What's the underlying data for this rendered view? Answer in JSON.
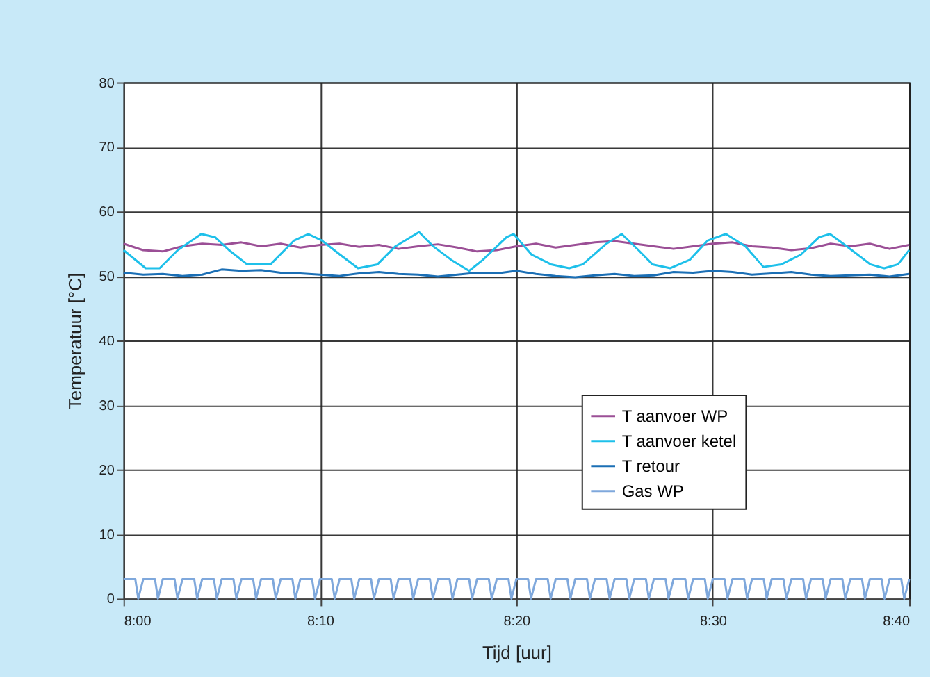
{
  "chart_data": {
    "type": "line",
    "xlabel": "Tijd [uur]",
    "ylabel": "Temperatuur [°C]",
    "x": [
      8,
      8.0167,
      8.0333,
      8.05,
      8.0667,
      8.0833,
      8.1,
      8.1167,
      8.1333,
      8.15,
      8.1667,
      8.1833,
      8.2,
      8.2167,
      8.2333,
      8.25,
      8.2667,
      8.2833,
      8.3,
      8.3167,
      8.3333,
      8.35,
      8.3667,
      8.3833,
      8.4,
      8.4167,
      8.4333,
      8.45,
      8.4667,
      8.4833,
      8.5,
      8.5167,
      8.5333,
      8.55,
      8.5667,
      8.5833,
      8.6,
      8.6167,
      8.6333,
      8.65,
      8.6667
    ],
    "series": [
      {
        "name": "T aanvoer WP",
        "color": "#9b4f96",
        "values": [
          55,
          54,
          53.8,
          54.6,
          55,
          54.8,
          55.2,
          54.6,
          55,
          54.4,
          54.8,
          55,
          54.5,
          54.8,
          54.2,
          54.6,
          54.9,
          54.4,
          53.8,
          54,
          54.6,
          55,
          54.4,
          54.8,
          55.2,
          55.4,
          55,
          54.6,
          54.2,
          54.6,
          55,
          55.2,
          54.6,
          54.4,
          54,
          54.3,
          55,
          54.6,
          55,
          54.2,
          54.8
        ]
      },
      {
        "name": "T aanvoer ketel",
        "color": "#1ec0ea",
        "x": [
          8,
          8.0188,
          8.0307,
          8.046,
          8.066,
          8.0777,
          8.0895,
          8.1048,
          8.1248,
          8.1448,
          8.1567,
          8.1683,
          8.1837,
          8.199,
          8.2155,
          8.2308,
          8.2508,
          8.2627,
          8.278,
          8.2933,
          8.305,
          8.325,
          8.331,
          8.3463,
          8.3628,
          8.3782,
          8.3898,
          8.4098,
          8.4228,
          8.437,
          8.4488,
          8.464,
          8.4805,
          8.4958,
          8.5112,
          8.5277,
          8.543,
          8.5583,
          8.5748,
          8.5902,
          8.5995,
          8.6137,
          8.6337,
          8.6455,
          8.6572,
          8.6667
        ],
        "values": [
          54,
          51.2,
          51.2,
          54,
          56.5,
          56,
          54,
          51.8,
          51.8,
          55.5,
          56.5,
          55.5,
          53.3,
          51.2,
          51.8,
          54.6,
          56.8,
          54.6,
          52.5,
          50.8,
          52.5,
          56,
          56.5,
          53.3,
          51.8,
          51.2,
          51.8,
          55,
          56.5,
          54,
          51.8,
          51.2,
          52.5,
          55.5,
          56.5,
          54.6,
          51.4,
          51.8,
          53.3,
          56,
          56.5,
          54.6,
          51.8,
          51.2,
          51.8,
          54
        ]
      },
      {
        "name": "T retour",
        "color": "#1b6fb5",
        "values": [
          50.5,
          50.2,
          50.3,
          50,
          50.2,
          51,
          50.8,
          50.9,
          50.5,
          50.4,
          50.2,
          50,
          50.4,
          50.6,
          50.3,
          50.2,
          49.9,
          50.2,
          50.5,
          50.4,
          50.8,
          50.3,
          50,
          49.8,
          50.1,
          50.3,
          50,
          50.1,
          50.6,
          50.5,
          50.8,
          50.6,
          50.2,
          50.4,
          50.6,
          50.2,
          50,
          50.1,
          50.2,
          49.9,
          50.3
        ]
      },
      {
        "name": "Gas WP",
        "color": "#7fa8dc",
        "x": [
          8,
          8.01,
          8.0125,
          8.0167,
          8.0267,
          8.0292,
          8.0333,
          8.0433,
          8.0458,
          8.05,
          8.06,
          8.0625,
          8.0667,
          8.0767,
          8.0792,
          8.0833,
          8.0933,
          8.0958,
          8.1,
          8.11,
          8.1125,
          8.1167,
          8.1267,
          8.1292,
          8.1333,
          8.1433,
          8.1458,
          8.15,
          8.16,
          8.1625,
          8.1667,
          8.1767,
          8.1792,
          8.1833,
          8.1933,
          8.1958,
          8.2,
          8.21,
          8.2125,
          8.2167,
          8.2267,
          8.2292,
          8.2333,
          8.2433,
          8.2458,
          8.25,
          8.26,
          8.2625,
          8.2667,
          8.2767,
          8.2792,
          8.2833,
          8.2933,
          8.2958,
          8.3,
          8.31,
          8.3125,
          8.3167,
          8.3267,
          8.3292,
          8.3333,
          8.3433,
          8.3458,
          8.35,
          8.36,
          8.3625,
          8.3667,
          8.3767,
          8.3792,
          8.3833,
          8.3933,
          8.3958,
          8.4,
          8.41,
          8.4125,
          8.4167,
          8.4267,
          8.4292,
          8.4333,
          8.4433,
          8.4458,
          8.45,
          8.46,
          8.4625,
          8.4667,
          8.4767,
          8.4792,
          8.4833,
          8.4933,
          8.4958,
          8.5,
          8.51,
          8.5125,
          8.5167,
          8.5267,
          8.5292,
          8.5333,
          8.5433,
          8.5458,
          8.55,
          8.56,
          8.5625,
          8.5667,
          8.5767,
          8.5792,
          8.5833,
          8.5933,
          8.5958,
          8.6,
          8.61,
          8.6125,
          8.6167,
          8.6267,
          8.6292,
          8.6333,
          8.6433,
          8.6458,
          8.65,
          8.66,
          8.6625,
          8.6667
        ],
        "values": [
          3,
          3,
          0,
          3,
          3,
          0,
          3,
          3,
          0,
          3,
          3,
          0,
          3,
          3,
          0,
          3,
          3,
          0,
          3,
          3,
          0,
          3,
          3,
          0,
          3,
          3,
          0,
          3,
          3,
          0,
          3,
          3,
          0,
          3,
          3,
          0,
          3,
          3,
          0,
          3,
          3,
          0,
          3,
          3,
          0,
          3,
          3,
          0,
          3,
          3,
          0,
          3,
          3,
          0,
          3,
          3,
          0,
          3,
          3,
          0,
          3,
          3,
          0,
          3,
          3,
          0,
          3,
          3,
          0,
          3,
          3,
          0,
          3,
          3,
          0,
          3,
          3,
          0,
          3,
          3,
          0,
          3,
          3,
          0,
          3,
          3,
          0,
          3,
          3,
          0,
          3,
          3,
          0,
          3,
          3,
          0,
          3,
          3,
          0,
          3,
          3,
          0,
          3,
          3,
          0,
          3,
          3,
          0,
          3,
          3,
          0,
          3,
          3,
          0,
          3,
          3,
          0,
          3,
          3,
          0,
          3
        ]
      }
    ],
    "xlim": [
      8,
      8.6667
    ],
    "xticks": [
      {
        "value": 8,
        "label": "8:00"
      },
      {
        "value": 8.1667,
        "label": "8:10"
      },
      {
        "value": 8.3333,
        "label": "8:20"
      },
      {
        "value": 8.5,
        "label": "8:30"
      },
      {
        "value": 8.6667,
        "label": "8:40"
      }
    ],
    "ylim": [
      0,
      80
    ],
    "yticks": [
      0,
      10,
      20,
      30,
      40,
      50,
      60,
      70,
      80
    ],
    "grid": true,
    "legend": "right",
    "marker": "none",
    "line_style": "solid"
  }
}
